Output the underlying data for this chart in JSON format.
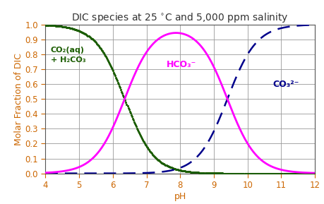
{
  "title": "DIC species at 25 °C and 5,000 ppm salinity",
  "xlabel": "pH",
  "ylabel": "Molar Fraction of DIC",
  "xlim": [
    4,
    12
  ],
  "ylim": [
    0.0,
    1.0
  ],
  "xticks": [
    4,
    5,
    6,
    7,
    8,
    9,
    10,
    11,
    12
  ],
  "yticks": [
    0.0,
    0.1,
    0.2,
    0.3,
    0.4,
    0.5,
    0.6,
    0.7,
    0.8,
    0.9,
    1.0
  ],
  "pKa1": 6.35,
  "pKa2": 9.4,
  "label_co2": "CO₂(aq)\n+ H₂CO₃",
  "label_hco3": "HCO₃⁻",
  "label_co3": "CO₃²⁻",
  "color_co2": "#1a5c00",
  "color_hco3": "#ff00ff",
  "color_co3": "#00008b",
  "color_axis": "#cc6600",
  "color_title": "#333333",
  "color_grid": "#999999",
  "color_spine": "#555555",
  "lw_hco3": 2.0,
  "lw_co2": 1.4,
  "lw_co3": 1.8,
  "background_color": "#ffffff",
  "title_fontsize": 10,
  "label_fontsize": 9,
  "tick_fontsize": 8.5,
  "annot_co2_fontsize": 8,
  "annot_hco3_fontsize": 9,
  "annot_co3_fontsize": 9
}
